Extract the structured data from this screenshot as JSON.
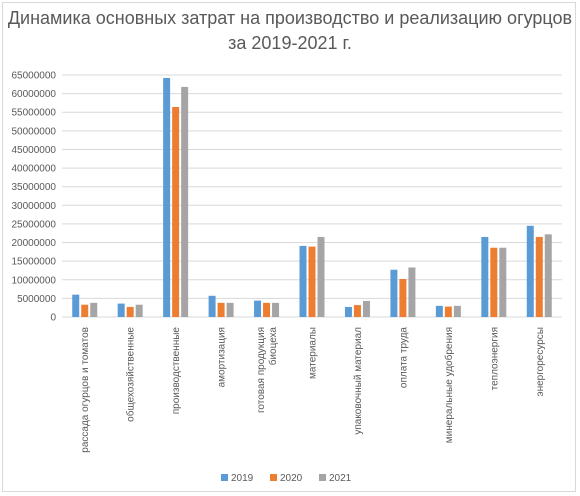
{
  "chart_data": {
    "type": "bar",
    "title": [
      "Динамика основных затрат на производство и реализацию огурцов",
      "за 2019-2021 г."
    ],
    "categories": [
      [
        "рассада огурцов и томатов"
      ],
      [
        "общехозяйственные"
      ],
      [
        "производственные"
      ],
      [
        "амортизация"
      ],
      [
        "готовая продукция",
        "биоцеха"
      ],
      [
        "материалы"
      ],
      [
        "упаковочный материал"
      ],
      [
        "оплата труда"
      ],
      [
        "минеральные удобрения"
      ],
      [
        "теплоэнергия"
      ],
      [
        "энергоресурсы"
      ]
    ],
    "series": [
      {
        "name": "2019",
        "color": "#5b9bd5",
        "values": [
          6000000,
          3600000,
          64200000,
          5700000,
          4400000,
          19100000,
          2700000,
          12700000,
          3000000,
          21500000,
          24500000
        ]
      },
      {
        "name": "2020",
        "color": "#ed7d31",
        "values": [
          3300000,
          2700000,
          56400000,
          3800000,
          3800000,
          18900000,
          3200000,
          10200000,
          2800000,
          18600000,
          21500000
        ]
      },
      {
        "name": "2021",
        "color": "#a5a5a5",
        "values": [
          3800000,
          3300000,
          61800000,
          3800000,
          3800000,
          21500000,
          4300000,
          13300000,
          3000000,
          18600000,
          22200000
        ]
      }
    ],
    "ylim": [
      0,
      65000000
    ],
    "ytick_step": 5000000,
    "xlabel": "",
    "ylabel": "",
    "grid": true,
    "legend_position": "bottom"
  }
}
